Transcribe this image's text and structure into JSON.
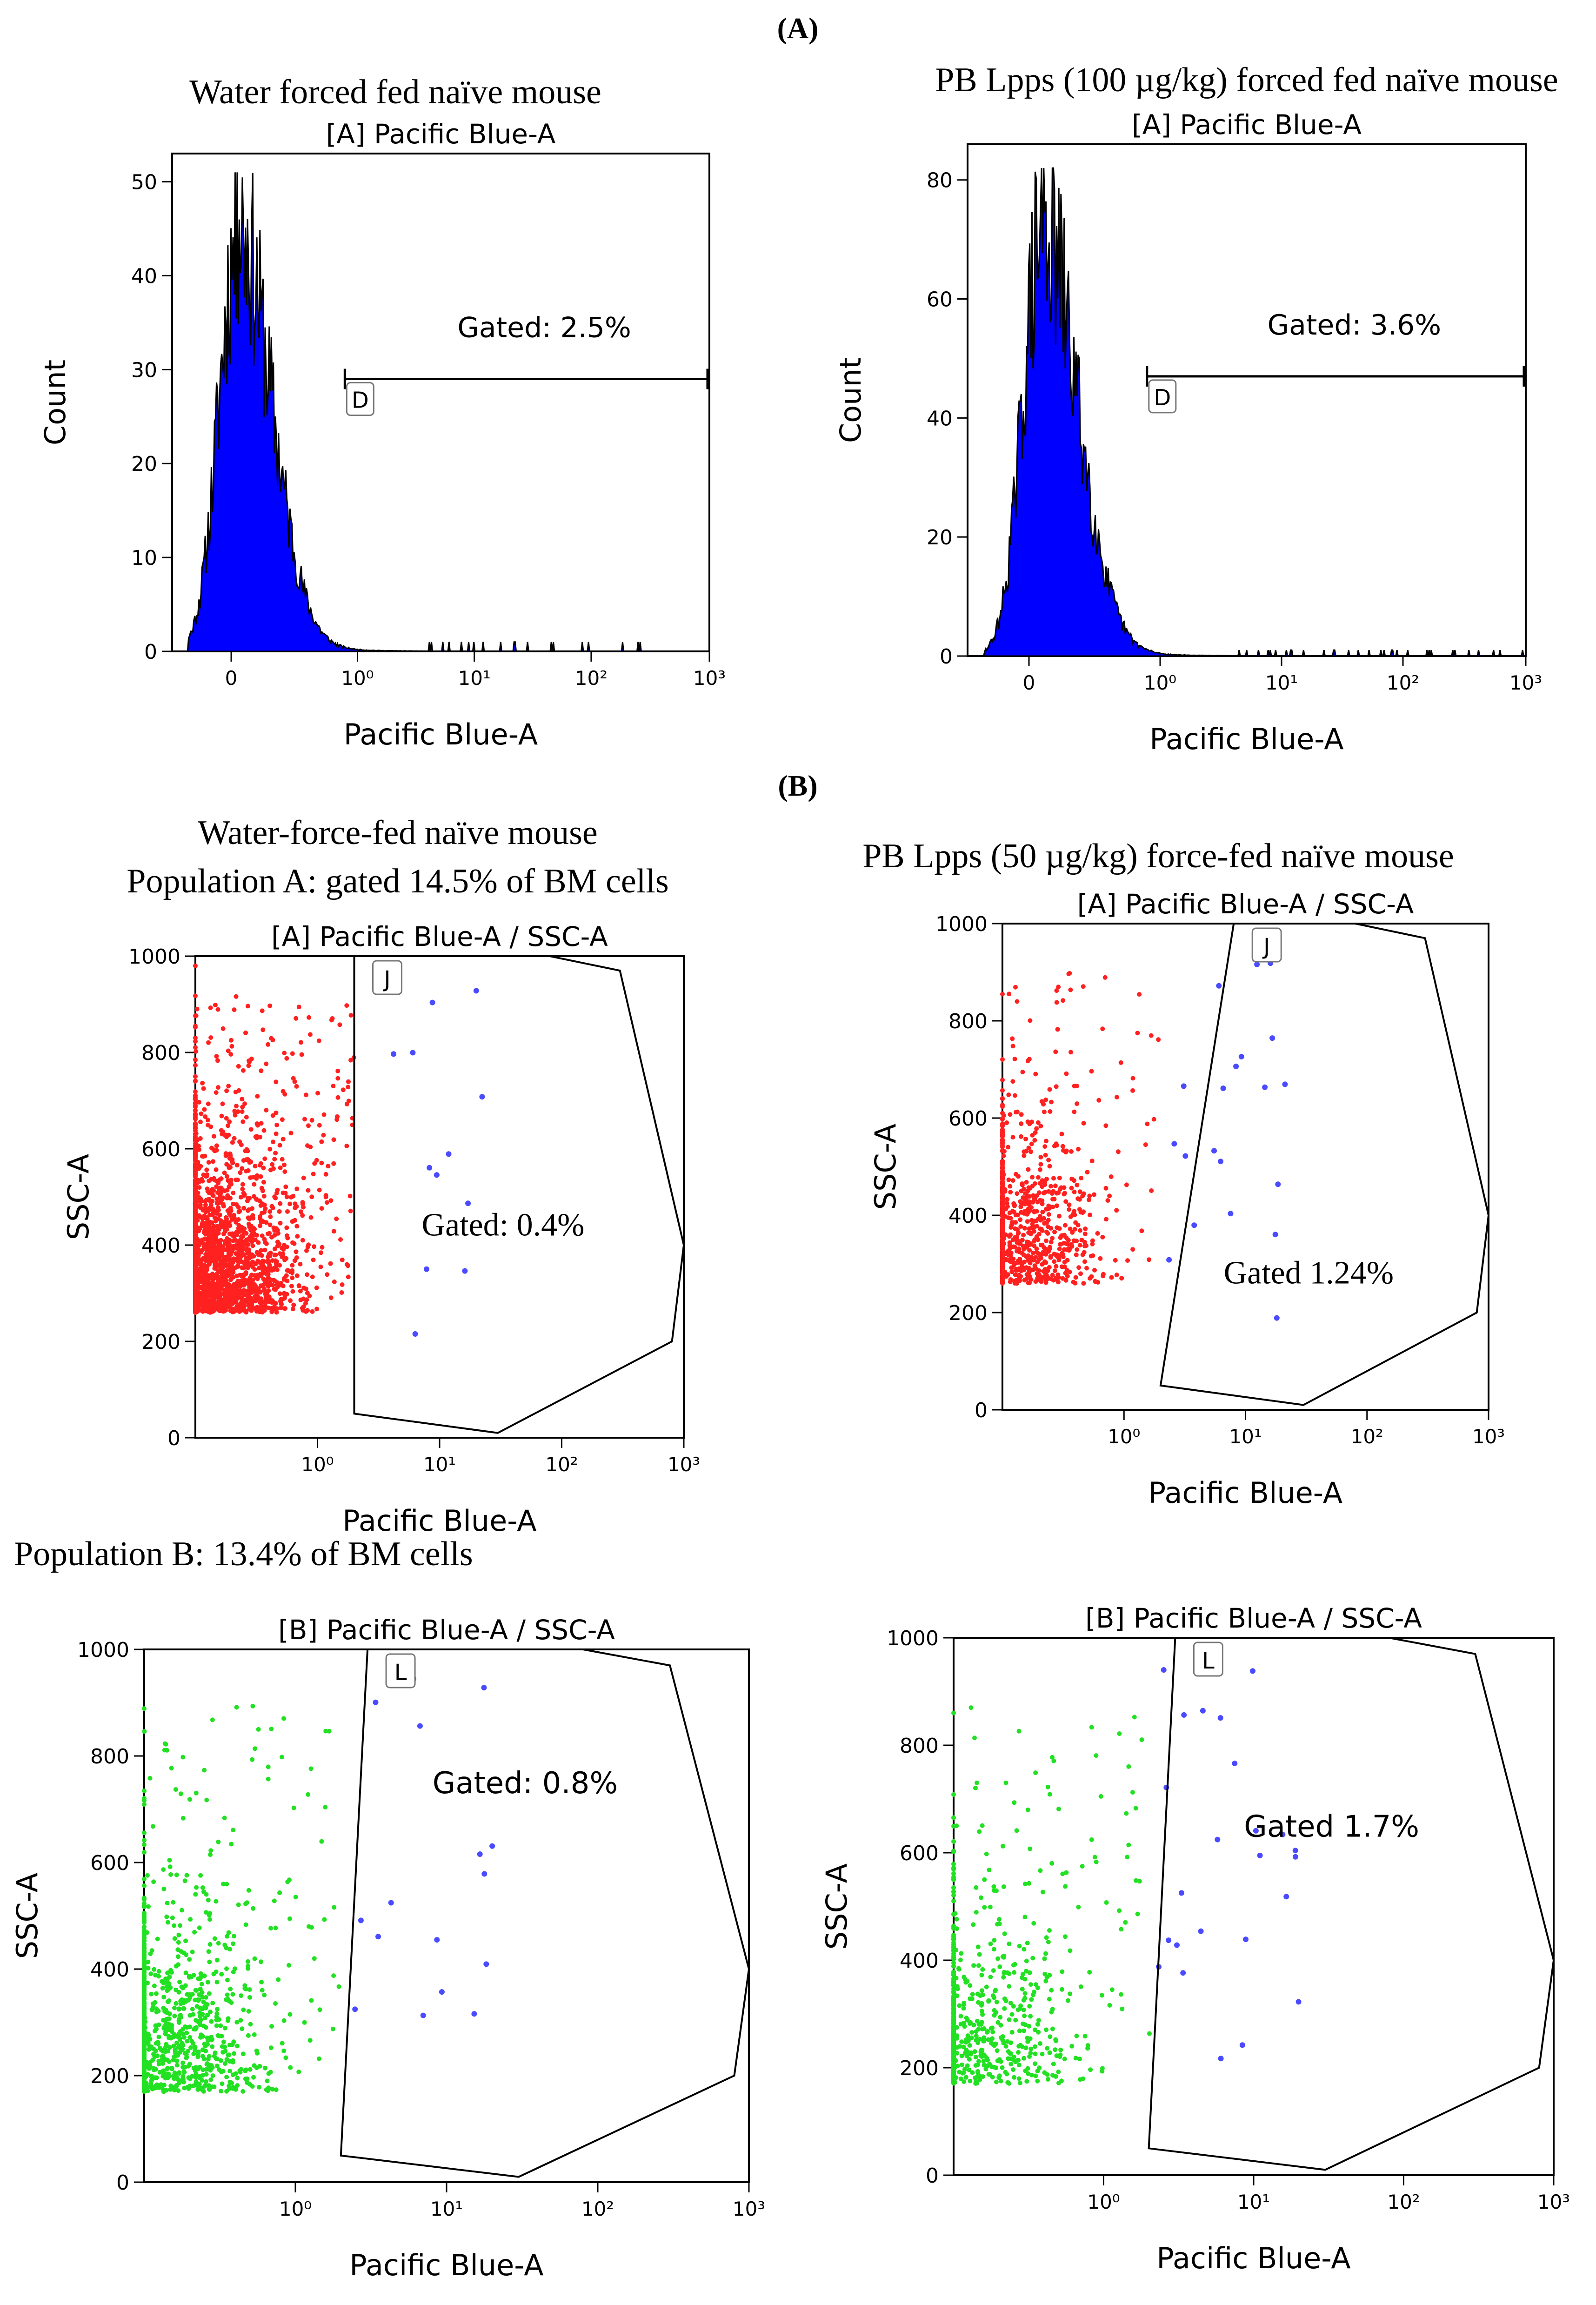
{
  "figure": {
    "panel_A_label": "A",
    "panel_B_label": "B",
    "population_b_caption": "Population B: 13.4% of BM cells"
  },
  "colors": {
    "histogram_fill": "#0000ff",
    "histogram_outline": "#000000",
    "population_A_dots": "#ff2020",
    "population_B_dots": "#22e022",
    "gated_dots": "#4a4aff",
    "gate_line": "#000000"
  },
  "chart_data": [
    {
      "id": "A-left",
      "type": "histogram",
      "heading": "Water forced fed naïve mouse",
      "title": "[A] Pacific Blue-A",
      "xlabel": "Pacific Blue-A",
      "ylabel": "Count",
      "xscale": "biexponential",
      "x_ticks": [
        "0",
        "10⁰",
        "10¹",
        "10²",
        "10³"
      ],
      "y_ticks": [
        0,
        10,
        20,
        30,
        40,
        50
      ],
      "ylim": [
        0,
        53
      ],
      "histogram_mode": 0.05,
      "histogram_peak": 51,
      "gate": {
        "label": "D",
        "text": "Gated: 2.5%",
        "x_from": 0.9,
        "x_to": 1000,
        "y": 29
      }
    },
    {
      "id": "A-right",
      "type": "histogram",
      "heading": "PB Lpps (100 µg/kg) forced fed naïve mouse",
      "title": "[A] Pacific Blue-A",
      "xlabel": "Pacific Blue-A",
      "ylabel": "Count",
      "xscale": "biexponential",
      "x_ticks": [
        "0",
        "10⁰",
        "10¹",
        "10²",
        "10³"
      ],
      "y_ticks": [
        0,
        20,
        40,
        60,
        80
      ],
      "ylim": [
        0,
        86
      ],
      "histogram_mode": 0.1,
      "histogram_peak": 82,
      "gate": {
        "label": "D",
        "text": "Gated: 3.6%",
        "x_from": 0.9,
        "x_to": 1000,
        "y": 47
      }
    },
    {
      "id": "B-top-left",
      "type": "scatter",
      "heading_lines": [
        "Water-force-fed naïve mouse",
        "Population A: gated 14.5% of BM cells"
      ],
      "title": "[A] Pacific Blue-A / SSC-A",
      "xlabel": "Pacific Blue-A",
      "ylabel": "SSC-A",
      "x_ticks": [
        "10⁰",
        "10¹",
        "10²",
        "10³"
      ],
      "y_ticks": [
        0,
        200,
        400,
        600,
        800,
        1000
      ],
      "ylim": [
        0,
        1000
      ],
      "population": "A",
      "gate": {
        "label": "J",
        "text": "Gated: 0.4%",
        "polygon": [
          [
            2,
            1000
          ],
          [
            80,
            1000
          ],
          [
            300,
            970
          ],
          [
            1000,
            400
          ],
          [
            800,
            200
          ],
          [
            30,
            10
          ],
          [
            2,
            50
          ]
        ]
      }
    },
    {
      "id": "B-top-right",
      "type": "scatter",
      "heading": "PB Lpps (50 µg/kg) force-fed naïve mouse",
      "title": "[A] Pacific Blue-A / SSC-A",
      "xlabel": "Pacific Blue-A",
      "ylabel": "SSC-A",
      "x_ticks": [
        "10⁰",
        "10¹",
        "10²",
        "10³"
      ],
      "y_ticks": [
        0,
        200,
        400,
        600,
        800,
        1000
      ],
      "ylim": [
        0,
        1000
      ],
      "population": "A",
      "gate": {
        "label": "J",
        "text": "Gated 1.24%",
        "polygon": [
          [
            8,
            1000
          ],
          [
            80,
            1000
          ],
          [
            300,
            970
          ],
          [
            1000,
            400
          ],
          [
            800,
            200
          ],
          [
            30,
            10
          ],
          [
            2,
            50
          ]
        ]
      }
    },
    {
      "id": "B-bottom-left",
      "type": "scatter",
      "title": "[B] Pacific Blue-A / SSC-A",
      "xlabel": "Pacific Blue-A",
      "ylabel": "SSC-A",
      "x_ticks": [
        "10⁰",
        "10¹",
        "10²",
        "10³"
      ],
      "y_ticks": [
        0,
        200,
        400,
        600,
        800,
        1000
      ],
      "ylim": [
        0,
        1000
      ],
      "population": "B",
      "gate": {
        "label": "L",
        "text": "Gated: 0.8%",
        "polygon": [
          [
            3,
            1000
          ],
          [
            80,
            1000
          ],
          [
            300,
            970
          ],
          [
            1000,
            400
          ],
          [
            800,
            200
          ],
          [
            30,
            10
          ],
          [
            2,
            50
          ]
        ]
      }
    },
    {
      "id": "B-bottom-right",
      "type": "scatter",
      "title": "[B] Pacific Blue-A / SSC-A",
      "xlabel": "Pacific Blue-A",
      "ylabel": "SSC-A",
      "x_ticks": [
        "10⁰",
        "10¹",
        "10²",
        "10³"
      ],
      "y_ticks": [
        0,
        200,
        400,
        600,
        800,
        1000
      ],
      "ylim": [
        0,
        1000
      ],
      "population": "B",
      "gate": {
        "label": "L",
        "text": "Gated 1.7%",
        "polygon": [
          [
            3,
            1000
          ],
          [
            80,
            1000
          ],
          [
            300,
            970
          ],
          [
            1000,
            400
          ],
          [
            800,
            200
          ],
          [
            30,
            10
          ],
          [
            2,
            50
          ]
        ]
      }
    }
  ]
}
